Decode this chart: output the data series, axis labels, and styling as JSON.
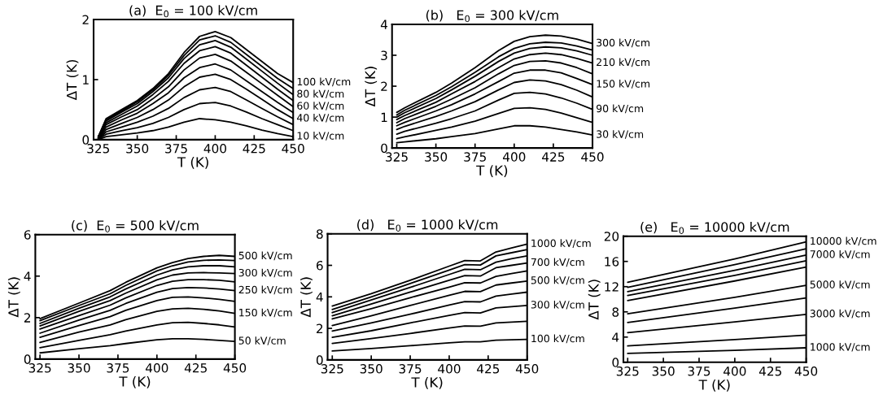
{
  "chart_data": [
    {
      "type": "line",
      "title": "(a)  E$_{0}$ = 100 kV/cm",
      "xlabel": "T (K)",
      "ylabel": "ΔT (K)",
      "xlim": [
        322,
        450
      ],
      "ylim": [
        0,
        2
      ],
      "xticks": [
        325,
        350,
        375,
        400,
        425,
        450
      ],
      "yticks": [
        0,
        1,
        2
      ],
      "x": [
        325,
        330,
        340,
        350,
        360,
        370,
        380,
        390,
        400,
        410,
        420,
        430,
        440,
        450
      ],
      "series": [
        {
          "name": "10 kV/cm",
          "color": "#000000",
          "values": [
            0.0,
            0.05,
            0.08,
            0.11,
            0.15,
            0.21,
            0.29,
            0.35,
            0.33,
            0.29,
            0.23,
            0.16,
            0.1,
            0.05
          ]
        },
        {
          "color": "#000000",
          "values": [
            0.01,
            0.09,
            0.15,
            0.2,
            0.27,
            0.37,
            0.5,
            0.6,
            0.62,
            0.56,
            0.46,
            0.35,
            0.25,
            0.15
          ]
        },
        {
          "color": "#000000",
          "values": [
            0.01,
            0.13,
            0.21,
            0.29,
            0.39,
            0.52,
            0.7,
            0.83,
            0.87,
            0.8,
            0.66,
            0.52,
            0.38,
            0.25
          ]
        },
        {
          "name": "40 kV/cm",
          "color": "#000000",
          "values": [
            0.02,
            0.17,
            0.27,
            0.37,
            0.5,
            0.66,
            0.88,
            1.04,
            1.09,
            1.0,
            0.84,
            0.67,
            0.5,
            0.35
          ]
        },
        {
          "color": "#000000",
          "values": [
            0.02,
            0.21,
            0.33,
            0.44,
            0.6,
            0.78,
            1.03,
            1.2,
            1.26,
            1.16,
            0.98,
            0.8,
            0.62,
            0.45
          ]
        },
        {
          "name": "60 kV/cm",
          "color": "#000000",
          "values": [
            0.03,
            0.25,
            0.38,
            0.5,
            0.68,
            0.88,
            1.16,
            1.36,
            1.42,
            1.31,
            1.12,
            0.93,
            0.74,
            0.55
          ]
        },
        {
          "color": "#000000",
          "values": [
            0.03,
            0.28,
            0.42,
            0.56,
            0.75,
            0.97,
            1.27,
            1.48,
            1.55,
            1.44,
            1.24,
            1.04,
            0.84,
            0.65
          ]
        },
        {
          "name": "80 kV/cm",
          "color": "#000000",
          "values": [
            0.04,
            0.31,
            0.46,
            0.6,
            0.8,
            1.03,
            1.35,
            1.58,
            1.65,
            1.54,
            1.34,
            1.14,
            0.94,
            0.75
          ]
        },
        {
          "color": "#000000",
          "values": [
            0.04,
            0.33,
            0.48,
            0.63,
            0.83,
            1.07,
            1.4,
            1.66,
            1.73,
            1.62,
            1.42,
            1.22,
            1.02,
            0.85
          ]
        },
        {
          "name": "100 kV/cm",
          "color": "#000000",
          "values": [
            0.05,
            0.35,
            0.5,
            0.65,
            0.85,
            1.1,
            1.45,
            1.72,
            1.8,
            1.7,
            1.5,
            1.3,
            1.1,
            0.95
          ]
        }
      ]
    },
    {
      "type": "line",
      "title": "(b)   E$_{0}$ = 300 kV/cm",
      "xlabel": "T (K)",
      "ylabel": "ΔT (K)",
      "xlim": [
        322,
        450
      ],
      "ylim": [
        0,
        4
      ],
      "xticks": [
        325,
        350,
        375,
        400,
        425,
        450
      ],
      "yticks": [
        0,
        1,
        2,
        3,
        4
      ],
      "x": [
        325,
        330,
        350,
        360,
        375,
        390,
        400,
        410,
        420,
        430,
        440,
        450
      ],
      "series": [
        {
          "name": "30 kV/cm",
          "color": "#000000",
          "values": [
            0.17,
            0.2,
            0.3,
            0.37,
            0.47,
            0.62,
            0.72,
            0.72,
            0.68,
            0.6,
            0.52,
            0.42
          ]
        },
        {
          "color": "#000000",
          "values": [
            0.3,
            0.36,
            0.57,
            0.68,
            0.87,
            1.12,
            1.28,
            1.3,
            1.25,
            1.13,
            0.98,
            0.83
          ]
        },
        {
          "name": "90 kV/cm",
          "color": "#000000",
          "values": [
            0.45,
            0.54,
            0.8,
            0.95,
            1.2,
            1.55,
            1.77,
            1.8,
            1.75,
            1.62,
            1.45,
            1.25
          ]
        },
        {
          "color": "#000000",
          "values": [
            0.6,
            0.7,
            1.02,
            1.2,
            1.5,
            1.88,
            2.12,
            2.2,
            2.17,
            2.05,
            1.87,
            1.65
          ]
        },
        {
          "name": "150 kV/cm",
          "color": "#000000",
          "values": [
            0.72,
            0.83,
            1.2,
            1.4,
            1.75,
            2.15,
            2.42,
            2.52,
            2.52,
            2.43,
            2.25,
            2.05
          ]
        },
        {
          "color": "#000000",
          "values": [
            0.82,
            0.95,
            1.35,
            1.58,
            1.95,
            2.4,
            2.67,
            2.8,
            2.82,
            2.75,
            2.6,
            2.4
          ]
        },
        {
          "name": "210 kV/cm",
          "color": "#000000",
          "values": [
            0.92,
            1.05,
            1.48,
            1.75,
            2.15,
            2.6,
            2.88,
            3.02,
            3.07,
            3.02,
            2.9,
            2.75
          ]
        },
        {
          "color": "#000000",
          "values": [
            1.0,
            1.14,
            1.6,
            1.88,
            2.32,
            2.8,
            3.07,
            3.22,
            3.27,
            3.24,
            3.14,
            3.0
          ]
        },
        {
          "color": "#000000",
          "values": [
            1.07,
            1.22,
            1.7,
            1.98,
            2.45,
            2.95,
            3.22,
            3.37,
            3.42,
            3.4,
            3.3,
            3.17
          ]
        },
        {
          "name": "300 kV/cm",
          "color": "#000000",
          "values": [
            1.15,
            1.3,
            1.8,
            2.1,
            2.6,
            3.15,
            3.45,
            3.6,
            3.65,
            3.62,
            3.52,
            3.38
          ]
        }
      ]
    },
    {
      "type": "line",
      "title": "(c)  E$_{0}$ = 500 kV/cm",
      "xlabel": "T (K)",
      "ylabel": "ΔT (K)",
      "xlim": [
        322,
        450
      ],
      "ylim": [
        0,
        6
      ],
      "xticks": [
        325,
        350,
        375,
        400,
        425,
        450
      ],
      "yticks": [
        0,
        2,
        4,
        6
      ],
      "x": [
        325,
        350,
        370,
        380,
        400,
        410,
        420,
        430,
        440,
        450
      ],
      "series": [
        {
          "name": "50 kV/cm",
          "color": "#000000",
          "values": [
            0.3,
            0.5,
            0.65,
            0.75,
            0.93,
            0.98,
            0.98,
            0.95,
            0.9,
            0.85
          ]
        },
        {
          "color": "#000000",
          "values": [
            0.55,
            0.9,
            1.18,
            1.35,
            1.65,
            1.75,
            1.77,
            1.72,
            1.65,
            1.55
          ]
        },
        {
          "name": "150 kV/cm",
          "color": "#000000",
          "values": [
            0.8,
            1.3,
            1.65,
            1.9,
            2.3,
            2.42,
            2.45,
            2.4,
            2.32,
            2.2
          ]
        },
        {
          "color": "#000000",
          "values": [
            1.05,
            1.62,
            2.05,
            2.35,
            2.82,
            2.98,
            3.0,
            2.95,
            2.88,
            2.78
          ]
        },
        {
          "name": "250 kV/cm",
          "color": "#000000",
          "values": [
            1.25,
            1.88,
            2.35,
            2.68,
            3.22,
            3.4,
            3.45,
            3.43,
            3.38,
            3.3
          ]
        },
        {
          "color": "#000000",
          "values": [
            1.45,
            2.1,
            2.6,
            2.95,
            3.55,
            3.75,
            3.83,
            3.83,
            3.8,
            3.72
          ]
        },
        {
          "name": "300 kV/cm",
          "color": "#000000",
          "values": [
            1.6,
            2.3,
            2.82,
            3.18,
            3.82,
            4.05,
            4.15,
            4.17,
            4.15,
            4.12
          ]
        },
        {
          "color": "#000000",
          "values": [
            1.72,
            2.45,
            3.0,
            3.38,
            4.05,
            4.3,
            4.45,
            4.5,
            4.5,
            4.45
          ]
        },
        {
          "color": "#000000",
          "values": [
            1.85,
            2.58,
            3.15,
            3.55,
            4.25,
            4.5,
            4.68,
            4.76,
            4.78,
            4.75
          ]
        },
        {
          "name": "500 kV/cm",
          "color": "#000000",
          "values": [
            1.95,
            2.7,
            3.3,
            3.7,
            4.4,
            4.65,
            4.85,
            4.95,
            5.0,
            4.95
          ]
        }
      ]
    },
    {
      "type": "line",
      "title": "(d)   E$_{0}$ = 1000 kV/cm",
      "xlabel": "T (K)",
      "ylabel": "ΔT (K)",
      "xlim": [
        322,
        450
      ],
      "ylim": [
        0,
        8
      ],
      "xticks": [
        325,
        350,
        375,
        400,
        425,
        450
      ],
      "yticks": [
        0,
        2,
        4,
        6,
        8
      ],
      "x": [
        325,
        350,
        375,
        400,
        410,
        420,
        430,
        440,
        450
      ],
      "series": [
        {
          "name": "100 kV/cm",
          "color": "#000000",
          "values": [
            0.57,
            0.72,
            0.9,
            1.08,
            1.15,
            1.15,
            1.25,
            1.28,
            1.3
          ]
        },
        {
          "color": "#000000",
          "values": [
            1.04,
            1.35,
            1.68,
            2.02,
            2.15,
            2.14,
            2.35,
            2.4,
            2.45
          ]
        },
        {
          "name": "300 kV/cm",
          "color": "#000000",
          "values": [
            1.43,
            1.85,
            2.35,
            2.82,
            3.0,
            2.98,
            3.3,
            3.38,
            3.45
          ]
        },
        {
          "color": "#000000",
          "values": [
            1.83,
            2.35,
            2.9,
            3.48,
            3.7,
            3.68,
            4.05,
            4.18,
            4.3
          ]
        },
        {
          "name": "500 kV/cm",
          "color": "#000000",
          "values": [
            2.18,
            2.8,
            3.45,
            4.1,
            4.35,
            4.33,
            4.75,
            4.88,
            5.0
          ]
        },
        {
          "color": "#000000",
          "values": [
            2.6,
            3.25,
            3.95,
            4.62,
            4.9,
            4.88,
            5.3,
            5.48,
            5.65
          ]
        },
        {
          "name": "700 kV/cm",
          "color": "#000000",
          "values": [
            2.8,
            3.55,
            4.3,
            5.05,
            5.35,
            5.32,
            5.85,
            6.0,
            6.15
          ]
        },
        {
          "color": "#000000",
          "values": [
            3.0,
            3.8,
            4.6,
            5.42,
            5.75,
            5.72,
            6.2,
            6.42,
            6.6
          ]
        },
        {
          "color": "#000000",
          "values": [
            3.2,
            4.0,
            4.85,
            5.7,
            6.05,
            6.02,
            6.6,
            6.8,
            7.0
          ]
        },
        {
          "name": "1000 kV/cm",
          "color": "#000000",
          "values": [
            3.42,
            4.2,
            5.05,
            5.95,
            6.3,
            6.28,
            6.85,
            7.1,
            7.35
          ]
        }
      ]
    },
    {
      "type": "line",
      "title": "(e)   E$_{0}$ = 10000 kV/cm",
      "xlabel": "T (K)",
      "ylabel": "ΔT (K)",
      "xlim": [
        322,
        450
      ],
      "ylim": [
        0,
        20
      ],
      "xticks": [
        325,
        350,
        375,
        400,
        425,
        450
      ],
      "yticks": [
        0,
        4,
        8,
        12,
        16,
        20
      ],
      "x": [
        325,
        400,
        450
      ],
      "series": [
        {
          "name": "1000 kV/cm",
          "color": "#000000",
          "values": [
            1.4,
            1.9,
            2.3
          ]
        },
        {
          "color": "#000000",
          "values": [
            2.6,
            3.6,
            4.3
          ]
        },
        {
          "name": "3000 kV/cm",
          "color": "#000000",
          "values": [
            4.7,
            6.4,
            7.6
          ]
        },
        {
          "color": "#000000",
          "values": [
            6.3,
            8.6,
            10.2
          ]
        },
        {
          "name": "5000 kV/cm",
          "color": "#000000",
          "values": [
            7.7,
            10.3,
            12.2
          ]
        },
        {
          "color": "#000000",
          "values": [
            9.8,
            12.9,
            15.1
          ]
        },
        {
          "color": "#000000",
          "values": [
            10.6,
            13.8,
            16.1
          ]
        },
        {
          "name": "7000 kV/cm",
          "color": "#000000",
          "values": [
            11.2,
            14.6,
            17.0
          ]
        },
        {
          "color": "#000000",
          "values": [
            11.9,
            15.5,
            18.0
          ]
        },
        {
          "name": "10000 kV/cm",
          "color": "#000000",
          "values": [
            12.7,
            16.4,
            19.1
          ]
        }
      ]
    }
  ]
}
